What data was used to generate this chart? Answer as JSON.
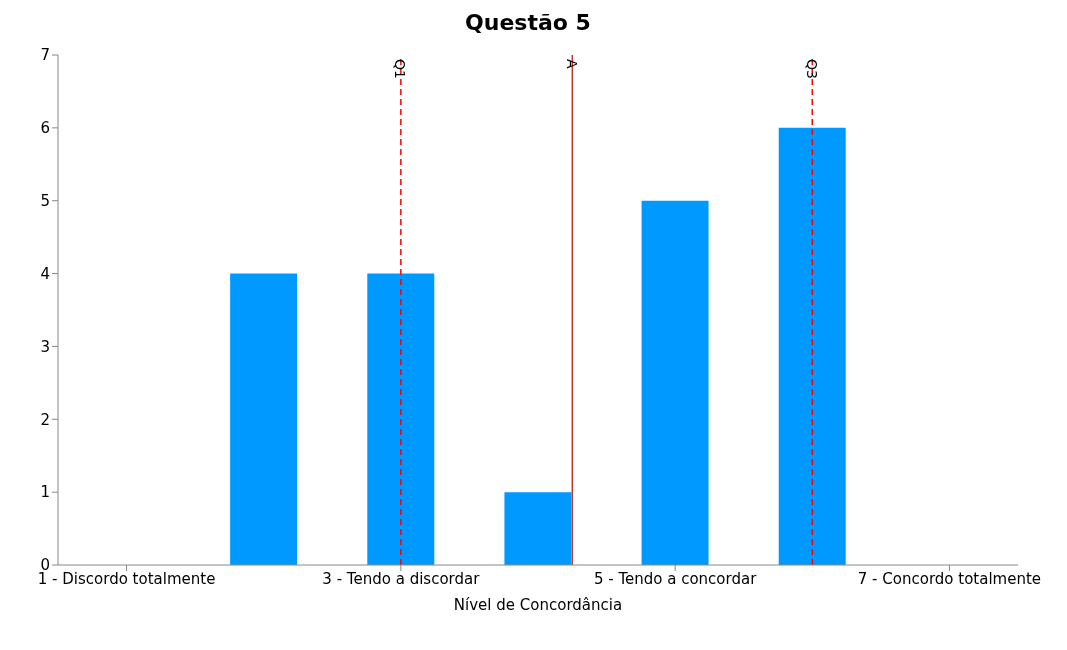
{
  "chart_data": {
    "type": "bar",
    "title": "Questão 5",
    "xlabel": "Nível de Concordância",
    "x": [
      1,
      2,
      3,
      4,
      5,
      6,
      7
    ],
    "values": [
      0,
      4,
      4,
      1,
      5,
      6,
      0
    ],
    "color": "#0099ff",
    "xlim": [
      0.5,
      7.5
    ],
    "xticks": [
      {
        "value": 1,
        "label": "1 - Discordo totalmente"
      },
      {
        "value": 3,
        "label": "3 - Tendo a discordar"
      },
      {
        "value": 5,
        "label": "5 - Tendo a concordar"
      },
      {
        "value": 7,
        "label": "7 - Concordo totalmente"
      }
    ],
    "ylim": [
      0,
      7
    ],
    "yticks": [
      0,
      1,
      2,
      3,
      4,
      5,
      6,
      7
    ],
    "ref_lines": [
      {
        "axis": "x",
        "value": 3,
        "label": "Q1",
        "color": "#ff0000",
        "line_style": "dashed"
      },
      {
        "axis": "x",
        "value": 4.25,
        "label": "A",
        "color": "#c0392b",
        "line_style": "solid"
      },
      {
        "axis": "x",
        "value": 6,
        "label": "Q3",
        "color": "#ff0000",
        "line_style": "dashed"
      }
    ],
    "grid": false,
    "legend": false
  }
}
